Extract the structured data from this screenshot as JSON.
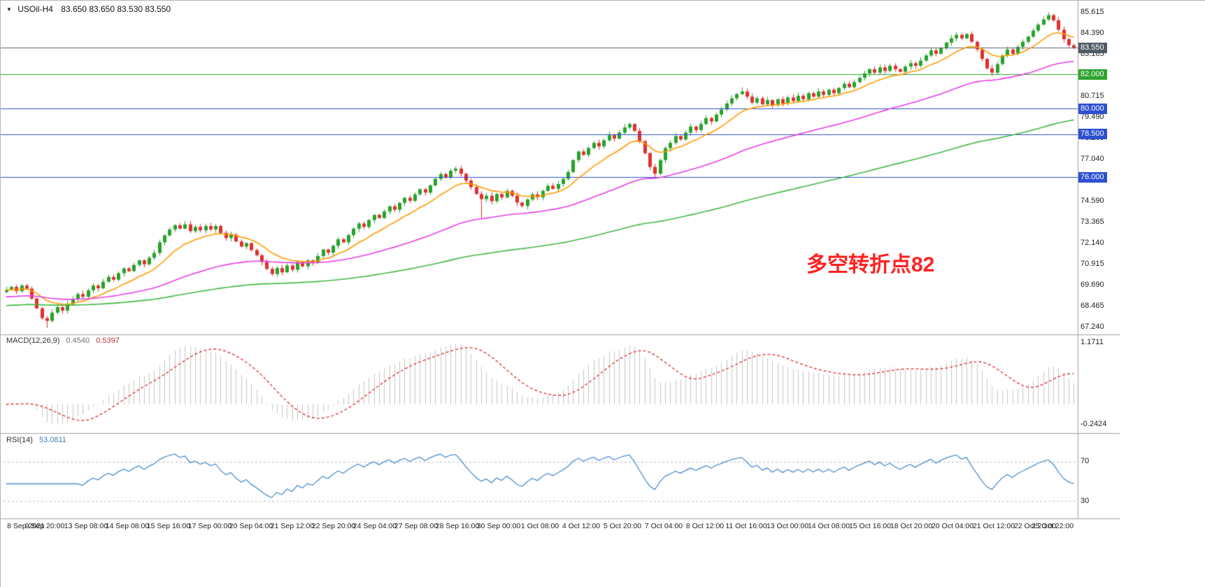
{
  "window": {
    "title_symbol": "USOil-H4",
    "title_ohlc": "83.650 83.650 83.530 83.550"
  },
  "chart_data": {
    "type": "candlestick",
    "symbol": "USOil",
    "timeframe": "H4",
    "first_open": 69.3,
    "closes": [
      69.42,
      69.6,
      69.35,
      69.68,
      69.5,
      68.92,
      68.35,
      67.78,
      67.62,
      68.1,
      68.42,
      68.22,
      68.6,
      68.88,
      69.18,
      69.02,
      69.4,
      69.68,
      69.52,
      69.9,
      70.18,
      70.02,
      70.4,
      70.68,
      70.52,
      70.88,
      71.15,
      70.92,
      71.3,
      71.58,
      72.2,
      72.6,
      72.95,
      73.2,
      73.0,
      73.25,
      72.85,
      73.1,
      72.9,
      73.15,
      72.95,
      73.15,
      72.75,
      72.45,
      72.65,
      72.25,
      71.95,
      72.15,
      71.75,
      71.45,
      71.05,
      70.65,
      70.35,
      70.7,
      70.45,
      70.85,
      70.6,
      71.05,
      70.8,
      71.15,
      71.0,
      71.4,
      71.78,
      71.6,
      72.0,
      72.38,
      72.2,
      72.62,
      73.0,
      73.3,
      73.1,
      73.5,
      73.8,
      73.62,
      74.0,
      74.3,
      74.1,
      74.5,
      74.8,
      74.62,
      75.0,
      75.3,
      75.1,
      75.52,
      75.9,
      76.18,
      76.0,
      76.38,
      76.5,
      76.2,
      75.8,
      75.42,
      75.02,
      74.72,
      74.92,
      74.6,
      75.02,
      74.82,
      75.2,
      74.92,
      74.52,
      74.32,
      74.7,
      75.0,
      74.82,
      75.2,
      75.5,
      75.32,
      75.6,
      75.9,
      76.3,
      77.0,
      77.5,
      77.3,
      77.7,
      78.0,
      77.8,
      78.15,
      78.45,
      78.25,
      78.6,
      78.9,
      79.1,
      78.7,
      78.1,
      77.4,
      76.6,
      76.2,
      77.0,
      77.7,
      78.0,
      78.4,
      78.2,
      78.6,
      78.95,
      78.75,
      79.1,
      79.45,
      79.25,
      79.65,
      79.95,
      80.3,
      80.6,
      80.85,
      81.0,
      80.7,
      80.35,
      80.6,
      80.25,
      80.5,
      80.2,
      80.55,
      80.3,
      80.65,
      80.45,
      80.75,
      80.55,
      80.9,
      80.7,
      81.0,
      80.8,
      81.1,
      80.9,
      81.2,
      81.45,
      81.25,
      81.55,
      81.8,
      82.05,
      82.3,
      82.1,
      82.4,
      82.2,
      82.5,
      82.3,
      82.15,
      82.45,
      82.65,
      82.5,
      82.8,
      83.1,
      83.4,
      83.2,
      83.55,
      83.85,
      84.1,
      84.3,
      84.1,
      84.35,
      83.9,
      83.45,
      82.9,
      82.35,
      82.1,
      82.6,
      83.1,
      83.45,
      83.2,
      83.6,
      83.9,
      84.2,
      84.55,
      84.9,
      85.2,
      85.45,
      85.15,
      84.6,
      84.05,
      83.7,
      83.55
    ],
    "wick_overrides": {
      "8": {
        "low": 67.2
      },
      "35": {
        "high": 73.45
      },
      "88": {
        "high": 76.62
      },
      "93": {
        "low": 73.6
      },
      "122": {
        "high": 79.2
      },
      "127": {
        "low": 75.9
      },
      "144": {
        "high": 81.25
      },
      "193": {
        "low": 81.9
      },
      "204": {
        "high": 85.615
      }
    },
    "up_color": "#27a32a",
    "down_color": "#e03030",
    "price_axis": {
      "ticks": [
        "85.615",
        "84.390",
        "83.165",
        "80.715",
        "79.490",
        "78.265",
        "77.040",
        "75.815",
        "74.590",
        "73.365",
        "72.140",
        "70.915",
        "69.690",
        "68.465",
        "67.240"
      ],
      "badges": [
        {
          "value": "83.550",
          "price": 83.55,
          "bg": "#4e5a66"
        },
        {
          "value": "82.000",
          "price": 82.0,
          "bg": "#2da32d"
        },
        {
          "value": "80.000",
          "price": 80.0,
          "bg": "#2d50d0"
        },
        {
          "value": "78.500",
          "price": 78.5,
          "bg": "#2d50d0"
        },
        {
          "value": "76.000",
          "price": 76.0,
          "bg": "#2d50d0"
        }
      ]
    },
    "hlines": [
      {
        "price": 83.55,
        "color": "#5a6774"
      },
      {
        "price": 82.0,
        "color": "#2da32d"
      },
      {
        "price": 80.0,
        "color": "#2d50d0"
      },
      {
        "price": 78.5,
        "color": "#2d50d0"
      },
      {
        "price": 76.0,
        "color": "#2d50d0"
      }
    ],
    "moving_averages": [
      {
        "name": "ma-fast",
        "period": 12,
        "color": "#ff9c00"
      },
      {
        "name": "ma-mid",
        "period": 55,
        "color": "#e93ee9"
      },
      {
        "name": "ma-slow",
        "period": 150,
        "color": "#43b843"
      }
    ],
    "macd": {
      "label": "MACD(12,26,9)",
      "value_main": "0.4540",
      "value_signal": "0.5397",
      "fast": 12,
      "slow": 26,
      "signal": 9,
      "axis_top": "1.1711",
      "axis_bottom": "-0.2424",
      "hist_color": "#c6c6c6",
      "signal_color": "#d92b2b"
    },
    "rsi": {
      "label": "RSI(14)",
      "value": "53.0811",
      "period": 14,
      "levels": [
        "70",
        "30"
      ],
      "color": "#4d8fce",
      "level_color": "#bdbdbd"
    },
    "time_axis": [
      "8 Sep 2021",
      "9 Sep 20:00",
      "13 Sep 08:00",
      "14 Sep 08:00",
      "15 Sep 16:00",
      "17 Sep 00:00",
      "20 Sep 04:00",
      "21 Sep 12:00",
      "22 Sep 20:00",
      "24 Sep 04:00",
      "27 Sep 08:00",
      "28 Sep 16:00",
      "30 Sep 00:00",
      "1 Oct 08:00",
      "4 Oct 12:00",
      "5 Oct 20:00",
      "7 Oct 04:00",
      "8 Oct 12:00",
      "11 Oct 16:00",
      "13 Oct 00:00",
      "14 Oct 08:00",
      "15 Oct 16:00",
      "18 Oct 20:00",
      "20 Oct 04:00",
      "21 Oct 12:00",
      "22 Oct 20:00",
      "25 Oct 22:00"
    ],
    "annotation": {
      "text": "多空转折点82",
      "color": "#ff2222"
    }
  }
}
